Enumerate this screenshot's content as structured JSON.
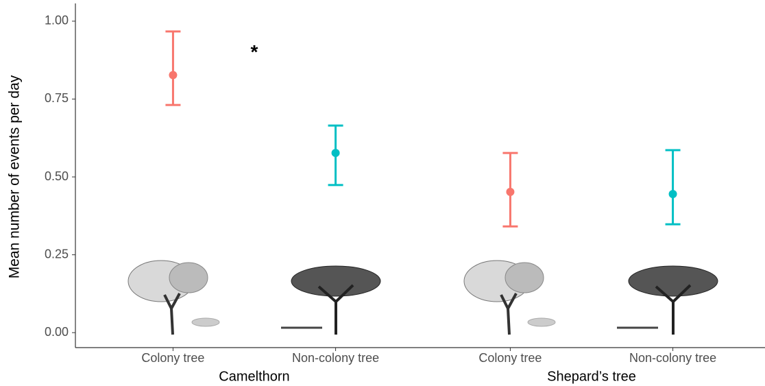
{
  "chart_data": {
    "type": "errorbar",
    "y_label": "Mean number of events per day",
    "categories": [
      "Colony tree",
      "Non-colony tree",
      "Colony tree",
      "Non-colony tree"
    ],
    "groups": [
      "Camelthorn",
      "Shepard’s tree"
    ],
    "values": [
      0.827,
      0.577,
      0.452,
      0.445
    ],
    "lower": [
      0.731,
      0.474,
      0.341,
      0.348
    ],
    "upper": [
      0.967,
      0.665,
      0.577,
      0.586
    ],
    "colors": [
      "#f8766d",
      "#00bfc4",
      "#f8766d",
      "#00bfc4"
    ],
    "ylim": [
      -0.048,
      1.057
    ],
    "yticks": [
      {
        "value": 0,
        "label": "0.00"
      },
      {
        "value": 0.25,
        "label": "0.25"
      },
      {
        "value": 0.5,
        "label": "0.50"
      },
      {
        "value": 0.75,
        "label": "0.75"
      },
      {
        "value": 1,
        "label": "1.00"
      }
    ],
    "annotations": [
      {
        "text": "*",
        "x": 0.5,
        "y": 0.91
      }
    ]
  }
}
